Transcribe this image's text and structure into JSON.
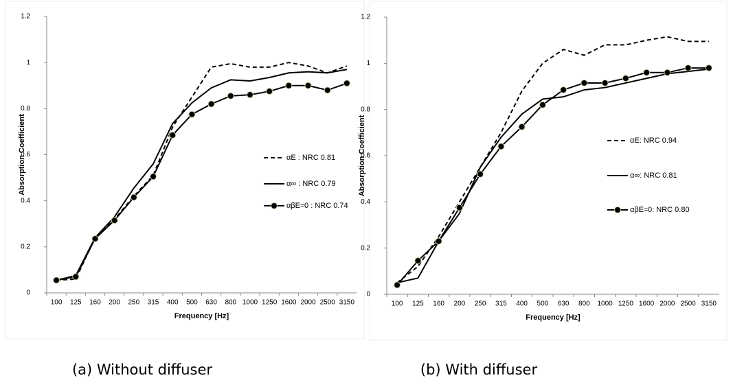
{
  "chart_data": [
    {
      "type": "line",
      "caption": "(a) Without diffuser",
      "x_label": "Frequency [Hz]",
      "y_label": "Absorption Coefficient",
      "categories": [
        "100",
        "125",
        "160",
        "200",
        "250",
        "315",
        "400",
        "500",
        "630",
        "800",
        "1000",
        "1250",
        "1600",
        "2000",
        "2500",
        "3150"
      ],
      "ylim": [
        0,
        1.2
      ],
      "yticks": [
        0,
        0.2,
        0.4,
        0.6,
        0.8,
        1,
        1.2
      ],
      "series": [
        {
          "name": "αE : NRC 0.81",
          "color": "#000000",
          "line_style": "dashed",
          "marker": false,
          "values": [
            0.055,
            0.06,
            0.24,
            0.32,
            0.42,
            0.51,
            0.72,
            0.85,
            0.98,
            0.995,
            0.98,
            0.98,
            1.0,
            0.985,
            0.955,
            0.985
          ]
        },
        {
          "name": "α∞ : NRC 0.79",
          "color": "#000000",
          "line_style": "solid",
          "marker": false,
          "values": [
            0.055,
            0.075,
            0.24,
            0.33,
            0.455,
            0.56,
            0.735,
            0.825,
            0.89,
            0.925,
            0.92,
            0.935,
            0.955,
            0.96,
            0.955,
            0.97
          ]
        },
        {
          "name": "αβE≈0 : NRC 0.74",
          "color": "#000000",
          "line_style": "solid",
          "marker": true,
          "values": [
            0.055,
            0.07,
            0.235,
            0.315,
            0.415,
            0.505,
            0.685,
            0.775,
            0.82,
            0.855,
            0.86,
            0.875,
            0.9,
            0.9,
            0.88,
            0.91
          ]
        }
      ]
    },
    {
      "type": "line",
      "caption": "(b) With diffuser",
      "x_label": "Frequency [Hz]",
      "y_label": "Absorption Coefficient",
      "categories": [
        "100",
        "125",
        "160",
        "200",
        "250",
        "315",
        "400",
        "500",
        "630",
        "800",
        "1000",
        "1250",
        "1600",
        "2000",
        "2500",
        "3150"
      ],
      "ylim": [
        0,
        1.2
      ],
      "yticks": [
        0,
        0.2,
        0.4,
        0.6,
        0.8,
        1,
        1.2
      ],
      "series": [
        {
          "name": "αE: NRC 0.94",
          "color": "#000000",
          "line_style": "dashed",
          "marker": false,
          "values": [
            0.05,
            0.12,
            0.25,
            0.4,
            0.55,
            0.7,
            0.88,
            1.0,
            1.06,
            1.035,
            1.08,
            1.08,
            1.1,
            1.115,
            1.095,
            1.095
          ]
        },
        {
          "name": "α∞: NRC 0.81",
          "color": "#000000",
          "line_style": "solid",
          "marker": false,
          "values": [
            0.05,
            0.07,
            0.23,
            0.35,
            0.55,
            0.68,
            0.78,
            0.845,
            0.855,
            0.885,
            0.895,
            0.915,
            0.935,
            0.955,
            0.965,
            0.975
          ]
        },
        {
          "name": "αβE≈0: NRC 0.80",
          "color": "#000000",
          "line_style": "solid",
          "marker": true,
          "values": [
            0.04,
            0.145,
            0.23,
            0.375,
            0.52,
            0.64,
            0.725,
            0.82,
            0.885,
            0.915,
            0.915,
            0.935,
            0.96,
            0.96,
            0.98,
            0.98
          ]
        }
      ]
    }
  ]
}
